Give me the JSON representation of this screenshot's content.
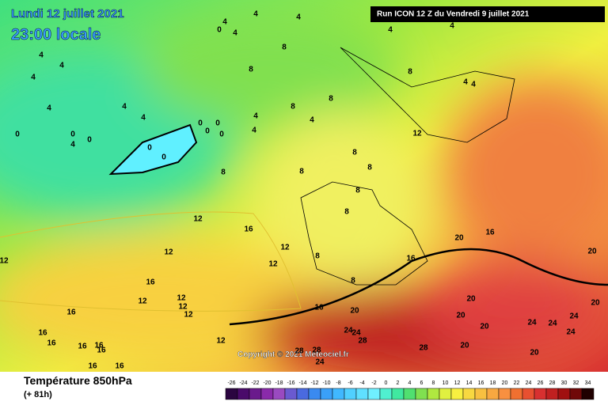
{
  "header": {
    "date": "Lundi 12 juillet 2021",
    "time": "23:00 locale",
    "run": "Run ICON 12 Z du Vendredi 9 juillet 2021"
  },
  "map": {
    "copyright": "Copyright © 2021 Meteociel.fr",
    "contour_labels": [
      4,
      4,
      4,
      0,
      4,
      4,
      4,
      8,
      4,
      4,
      4,
      8,
      8,
      4,
      4,
      4,
      8,
      4,
      4,
      8,
      0,
      0,
      0,
      0,
      4,
      0,
      4,
      0,
      0,
      0,
      0,
      8,
      8,
      8,
      8,
      8,
      12,
      4,
      4,
      8,
      12,
      16,
      12,
      12,
      12,
      8,
      12,
      16,
      8,
      16,
      20,
      16,
      20,
      12,
      12,
      12,
      16,
      20,
      16,
      12,
      20,
      20,
      20,
      16,
      16,
      16,
      16,
      16,
      12,
      24,
      24,
      28,
      28,
      20,
      24,
      24,
      24,
      24,
      20,
      20,
      28,
      28,
      24,
      16,
      16
    ]
  },
  "legend": {
    "title": "Température 850hPa",
    "lead": "(+ 81h)",
    "scale": [
      -26,
      -24,
      -22,
      -20,
      -18,
      -16,
      -14,
      -12,
      -10,
      -8,
      -6,
      -4,
      -2,
      0,
      2,
      4,
      6,
      8,
      10,
      12,
      14,
      16,
      18,
      20,
      22,
      24,
      26,
      28,
      30,
      32,
      34
    ],
    "colors": [
      "#2b0540",
      "#4a0a6a",
      "#6a1a8c",
      "#8a2aaa",
      "#9a4ac0",
      "#6a5ad0",
      "#4a6ae0",
      "#3a8af0",
      "#3aa0f8",
      "#40b8ff",
      "#50d0ff",
      "#60e0ff",
      "#70f0ff",
      "#50f0d0",
      "#40e8a0",
      "#50e070",
      "#80e050",
      "#b0e840",
      "#e0f040",
      "#f8f040",
      "#f8d840",
      "#f8c040",
      "#f8a840",
      "#f89040",
      "#f07030",
      "#e85030",
      "#d83030",
      "#c02020",
      "#a01010",
      "#700808",
      "#200000"
    ]
  }
}
